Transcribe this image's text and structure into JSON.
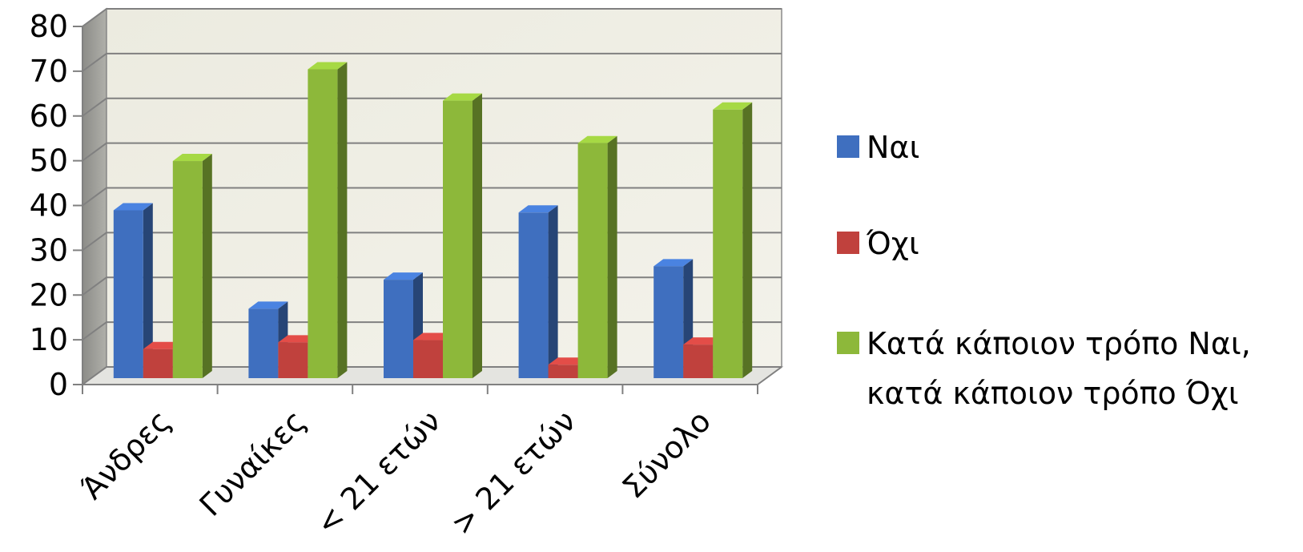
{
  "chart_data": {
    "type": "bar",
    "categories": [
      "Άνδρες",
      "Γυναίκες",
      "< 21 ετών",
      "> 21 ετών",
      "Σύνολο"
    ],
    "series": [
      {
        "name": "Ναι",
        "values": [
          40,
          18,
          24.5,
          39.5,
          27.5
        ],
        "color": "#3f6fbf"
      },
      {
        "name": "Όχι",
        "values": [
          9,
          10.5,
          11,
          5.5,
          10
        ],
        "color": "#c0413d"
      },
      {
        "name": "Κατά κάποιον τρόπο Ναι, κατά κάποιον τρόπο Όχι",
        "legend_lines": [
          "Κατά κάποιον τρόπο Ναι,",
          "κατά κάποιον τρόπο Όχι"
        ],
        "values": [
          51,
          71.5,
          64.5,
          55,
          62.5
        ],
        "color": "#8db83a"
      }
    ],
    "ylim": [
      0,
      80
    ],
    "yticks": [
      0,
      10,
      20,
      30,
      40,
      50,
      60,
      70,
      80
    ],
    "grid": true,
    "legend_position": "right",
    "title": "",
    "xlabel": "",
    "ylabel": ""
  }
}
